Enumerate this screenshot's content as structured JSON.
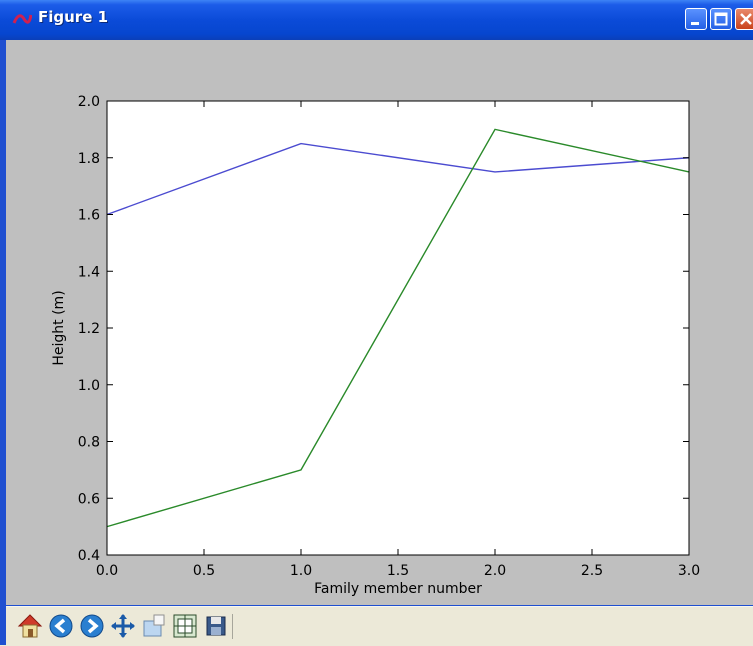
{
  "window": {
    "title": "Figure 1",
    "controls": [
      "minimize",
      "maximize",
      "close"
    ]
  },
  "toolbar": {
    "buttons": [
      {
        "name": "home",
        "icon": "home-icon"
      },
      {
        "name": "back",
        "icon": "back-arrow-icon"
      },
      {
        "name": "forward",
        "icon": "forward-arrow-icon"
      },
      {
        "name": "pan",
        "icon": "pan-cross-icon"
      },
      {
        "name": "zoom",
        "icon": "zoom-rect-icon"
      },
      {
        "name": "configure-subplots",
        "icon": "subplots-icon"
      },
      {
        "name": "save",
        "icon": "save-icon"
      }
    ]
  },
  "chart_data": {
    "type": "line",
    "title": "",
    "xlabel": "Family member number",
    "ylabel": "Height (m)",
    "xlim": [
      0.0,
      3.0
    ],
    "ylim": [
      0.4,
      2.0
    ],
    "xticks": [
      "0.0",
      "0.5",
      "1.0",
      "1.5",
      "2.0",
      "2.5",
      "3.0"
    ],
    "yticks": [
      "0.4",
      "0.6",
      "0.8",
      "1.0",
      "1.2",
      "1.4",
      "1.6",
      "1.8",
      "2.0"
    ],
    "grid": false,
    "series": [
      {
        "color": "#4b4bd0",
        "x": [
          0,
          1,
          2,
          3
        ],
        "y": [
          1.6,
          1.85,
          1.75,
          1.8
        ]
      },
      {
        "color": "#2a8a2a",
        "x": [
          0,
          1,
          2,
          3
        ],
        "y": [
          0.5,
          0.7,
          1.9,
          1.75
        ]
      }
    ]
  }
}
